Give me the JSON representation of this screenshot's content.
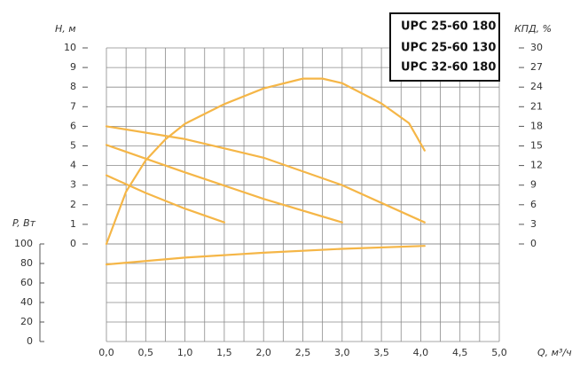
{
  "chart_data": {
    "type": "line",
    "legend": [
      "UPC 25-60 180",
      "UPC 25-60 130",
      "UPC 32-60 180"
    ],
    "xlabel": "Q, м³/ч",
    "ylabel": "H, м",
    "y2label": "КПД, %",
    "y3label": "P, Вт",
    "color": "#f5b647",
    "xlim": [
      0,
      5
    ],
    "xticks": [
      {
        "value": 0,
        "label": "0,0"
      },
      {
        "value": 0.5,
        "label": "0,5"
      },
      {
        "value": 1,
        "label": "1,0"
      },
      {
        "value": 1.5,
        "label": "1,5"
      },
      {
        "value": 2,
        "label": "2,0"
      },
      {
        "value": 2.5,
        "label": "2,5"
      },
      {
        "value": 3,
        "label": "3,0"
      },
      {
        "value": 3.5,
        "label": "3,5"
      },
      {
        "value": 4,
        "label": "4,0"
      },
      {
        "value": 4.5,
        "label": "4,5"
      },
      {
        "value": 5,
        "label": "5,0"
      }
    ],
    "ylim": [
      0,
      10
    ],
    "yticks": [
      0,
      1,
      2,
      3,
      4,
      5,
      6,
      7,
      8,
      9,
      10
    ],
    "y2lim": [
      0,
      30
    ],
    "y2ticks": [
      0,
      3,
      6,
      9,
      12,
      15,
      18,
      21,
      24,
      27,
      30
    ],
    "y3lim": [
      0,
      100
    ],
    "y3ticks": [
      0,
      20,
      40,
      60,
      80,
      100
    ],
    "grid": true,
    "series": [
      {
        "axis": "y",
        "x": [
          0,
          1,
          2,
          3,
          4.05
        ],
        "values": [
          6,
          5.35,
          4.4,
          3,
          1.1
        ]
      },
      {
        "axis": "y",
        "x": [
          0,
          1,
          2,
          3
        ],
        "values": [
          5.05,
          3.65,
          2.3,
          1.1
        ]
      },
      {
        "axis": "y",
        "x": [
          0,
          0.5,
          1,
          1.5
        ],
        "values": [
          3.5,
          2.6,
          1.8,
          1.1
        ]
      },
      {
        "axis": "y2",
        "x": [
          0,
          0.25,
          0.5,
          0.75,
          1,
          1.5,
          2,
          2.5,
          2.75,
          3,
          3.5,
          3.85,
          4.05
        ],
        "values": [
          0,
          8,
          12.8,
          16,
          18.4,
          21.4,
          23.8,
          25.3,
          25.3,
          24.6,
          21.5,
          18.5,
          14.3
        ]
      },
      {
        "axis": "y3",
        "x": [
          0,
          1,
          2,
          3,
          4.05
        ],
        "values": [
          79,
          86,
          91,
          95,
          98
        ]
      }
    ]
  }
}
